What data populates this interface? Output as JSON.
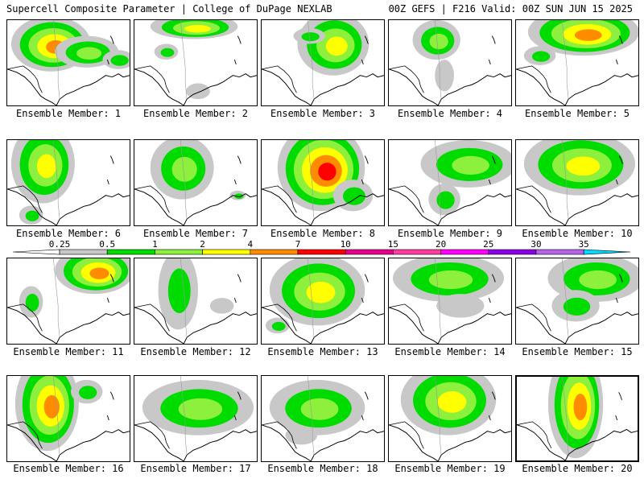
{
  "header": {
    "left": "Supercell Composite Parameter | College of DuPage NEXLAB",
    "right": "00Z GEFS | F216 Valid: 00Z SUN JUN 15 2025"
  },
  "colors": {
    "gray": "#c8c8c8",
    "green": "#00dc00",
    "lightgreen": "#8cf03c",
    "yellow": "#ffff00",
    "orange": "#ff8c00",
    "red": "#ff0000"
  },
  "colorbar": {
    "labels": [
      "0.25",
      "0.5",
      "1",
      "2",
      "4",
      "7",
      "10",
      "15",
      "20",
      "25",
      "30",
      "35"
    ],
    "colors": [
      "#c8c8c8",
      "#00dc00",
      "#8cf03c",
      "#ffff00",
      "#ff8c00",
      "#ff0000",
      "#e8008c",
      "#ff3ca0",
      "#ff00ff",
      "#8c00e6",
      "#b464e6",
      "#00dcff"
    ]
  },
  "members": [
    {
      "caption": "Ensemble Member: 1"
    },
    {
      "caption": "Ensemble Member: 2"
    },
    {
      "caption": "Ensemble Member: 3"
    },
    {
      "caption": "Ensemble Member: 4"
    },
    {
      "caption": "Ensemble Member: 5"
    },
    {
      "caption": "Ensemble Member: 6"
    },
    {
      "caption": "Ensemble Member: 7"
    },
    {
      "caption": "Ensemble Member: 8"
    },
    {
      "caption": "Ensemble Member: 9"
    },
    {
      "caption": "Ensemble Member: 10"
    },
    {
      "caption": "Ensemble Member: 11"
    },
    {
      "caption": "Ensemble Member: 12"
    },
    {
      "caption": "Ensemble Member: 13"
    },
    {
      "caption": "Ensemble Member: 14"
    },
    {
      "caption": "Ensemble Member: 15"
    },
    {
      "caption": "Ensemble Member: 16"
    },
    {
      "caption": "Ensemble Member: 17"
    },
    {
      "caption": "Ensemble Member: 18"
    },
    {
      "caption": "Ensemble Member: 19"
    },
    {
      "caption": "Ensemble Member: 20"
    }
  ]
}
